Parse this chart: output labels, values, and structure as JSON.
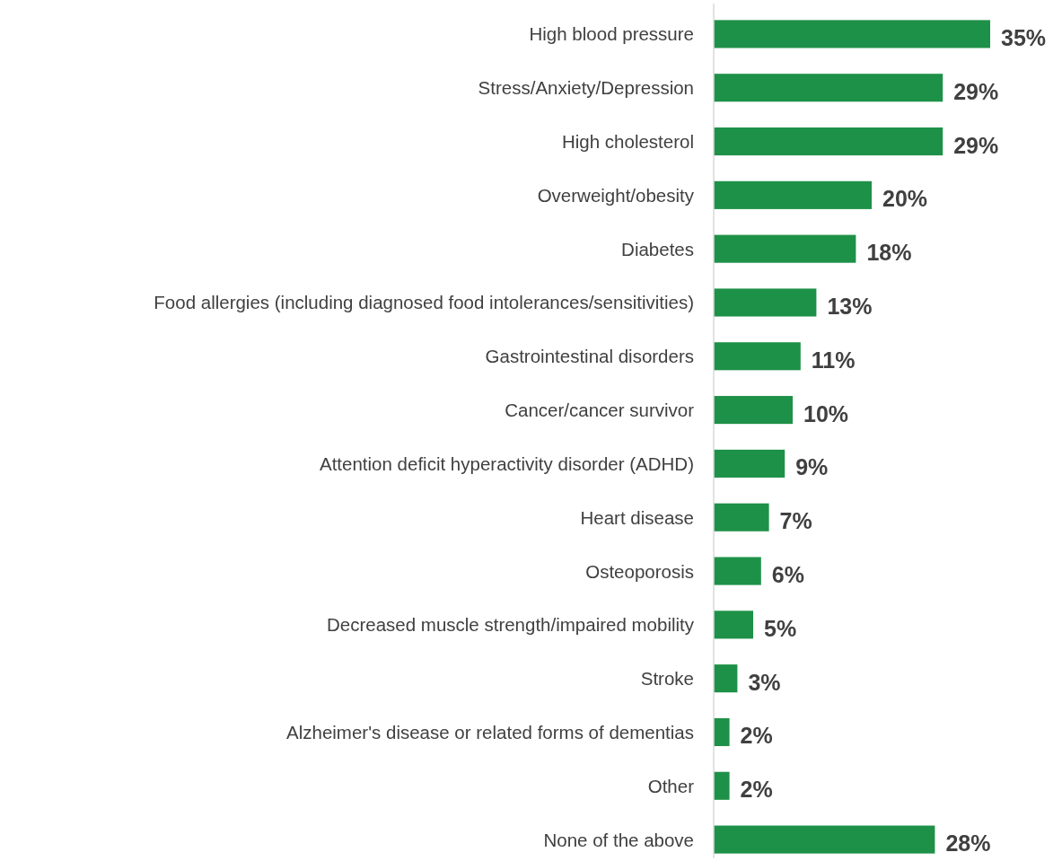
{
  "chart_data": {
    "type": "bar",
    "orientation": "horizontal",
    "categories": [
      "High blood pressure",
      "Stress/Anxiety/Depression",
      "High cholesterol",
      "Overweight/obesity",
      "Diabetes",
      "Food allergies (including diagnosed food intolerances/sensitivities)",
      "Gastrointestinal disorders",
      "Cancer/cancer survivor",
      "Attention deficit hyperactivity disorder (ADHD)",
      "Heart disease",
      "Osteoporosis",
      "Decreased muscle strength/impaired mobility",
      "Stroke",
      "Alzheimer's disease or related forms of dementias",
      "Other",
      "None of the above"
    ],
    "values": [
      35,
      29,
      29,
      20,
      18,
      13,
      11,
      10,
      9,
      7,
      6,
      5,
      3,
      2,
      2,
      28
    ],
    "value_labels": [
      "35%",
      "29%",
      "29%",
      "20%",
      "18%",
      "13%",
      "11%",
      "10%",
      "9%",
      "7%",
      "6%",
      "5%",
      "3%",
      "2%",
      "2%",
      "28%"
    ],
    "color": "#1e9148"
  }
}
